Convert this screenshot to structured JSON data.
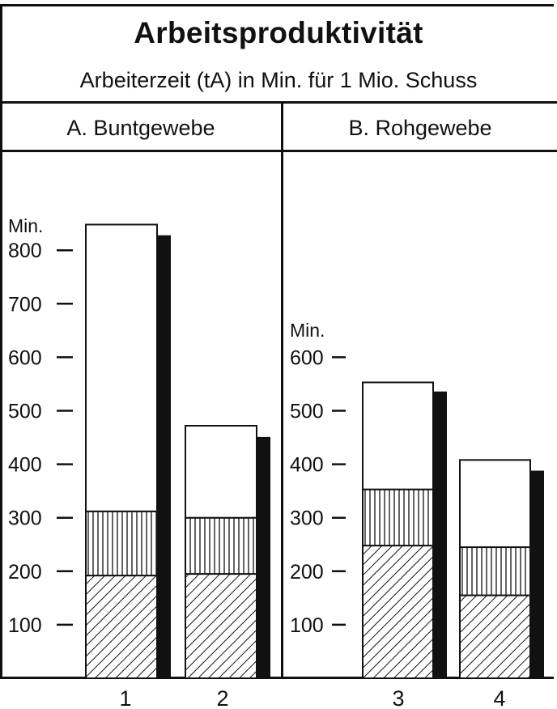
{
  "header": {
    "title": "Arbeitsproduktivität",
    "subtitle": "Arbeiterzeit (tA) in Min. für 1 Mio. Schuss"
  },
  "panels": {
    "left": {
      "title": "A. Buntgewebe"
    },
    "right": {
      "title": "B. Rohgewebe"
    }
  },
  "colors": {
    "ink": "#111111",
    "paper": "#ffffff"
  },
  "chart_data": [
    {
      "type": "bar",
      "title": "A. Buntgewebe",
      "ylabel": "Min.",
      "yticks": [
        100,
        200,
        300,
        400,
        500,
        600,
        700,
        800
      ],
      "ylim": [
        0,
        850
      ],
      "categories": [
        "1",
        "2"
      ],
      "stack_segments": [
        {
          "pattern": "diagonal-hatch",
          "values": [
            192,
            195
          ]
        },
        {
          "pattern": "vertical-hatch",
          "values": [
            120,
            105
          ]
        },
        {
          "pattern": "blank",
          "values": [
            536,
            172
          ]
        }
      ],
      "totals": [
        848,
        472
      ],
      "dark_bars": [
        828,
        451
      ],
      "grid": false
    },
    {
      "type": "bar",
      "title": "B. Rohgewebe",
      "ylabel": "Min.",
      "yticks": [
        100,
        200,
        300,
        400,
        500,
        600
      ],
      "ylim": [
        0,
        850
      ],
      "categories": [
        "3",
        "4"
      ],
      "stack_segments": [
        {
          "pattern": "diagonal-hatch",
          "values": [
            248,
            155
          ]
        },
        {
          "pattern": "vertical-hatch",
          "values": [
            105,
            90
          ]
        },
        {
          "pattern": "blank",
          "values": [
            200,
            163
          ]
        }
      ],
      "totals": [
        553,
        408
      ],
      "dark_bars": [
        536,
        388
      ],
      "grid": false
    }
  ]
}
